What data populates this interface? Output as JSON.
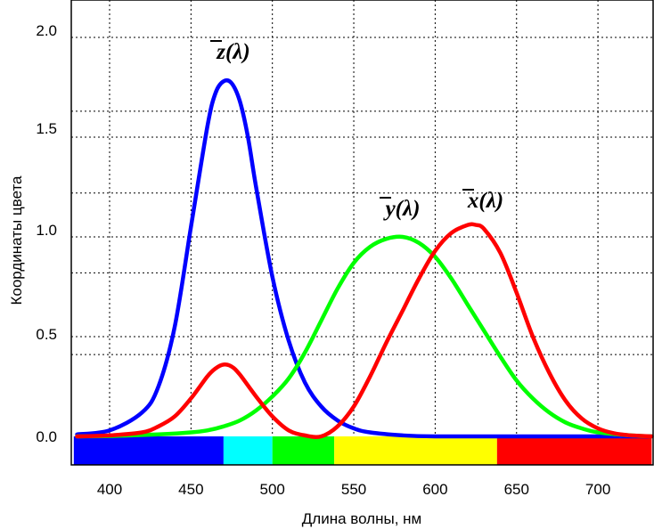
{
  "chart_data": {
    "type": "line",
    "xlabel": "Длина волны, нм",
    "ylabel": "Координаты цвета",
    "xlim": [
      378,
      733
    ],
    "ylim": [
      -0.12,
      2.2
    ],
    "x_ticks": [
      "400",
      "450",
      "500",
      "550",
      "600",
      "650",
      "700"
    ],
    "y_ticks": [
      "0.0",
      "0.5",
      "1.0",
      "1.5",
      "2.0"
    ],
    "grid": true,
    "series": [
      {
        "name": "z̄(λ)",
        "label_text": "z(λ)",
        "color": "#0000ff",
        "x": [
          380,
          400,
          420,
          430,
          440,
          450,
          460,
          465,
          470,
          475,
          480,
          485,
          490,
          500,
          510,
          520,
          530,
          540,
          550,
          560,
          580,
          600,
          650,
          700,
          733
        ],
        "y": [
          0.01,
          0.03,
          0.12,
          0.25,
          0.55,
          1.05,
          1.55,
          1.72,
          1.78,
          1.77,
          1.68,
          1.5,
          1.25,
          0.8,
          0.48,
          0.27,
          0.15,
          0.08,
          0.04,
          0.02,
          0.005,
          0.0,
          0.0,
          0.0,
          0.0
        ]
      },
      {
        "name": "ȳ(λ)",
        "label_text": "y(λ)",
        "color": "#00ff00",
        "x": [
          380,
          400,
          430,
          450,
          460,
          470,
          480,
          490,
          500,
          510,
          520,
          530,
          540,
          550,
          560,
          570,
          580,
          590,
          600,
          610,
          620,
          630,
          640,
          650,
          660,
          670,
          680,
          690,
          700,
          720,
          733
        ],
        "y": [
          0.0,
          0.002,
          0.01,
          0.02,
          0.03,
          0.05,
          0.08,
          0.13,
          0.2,
          0.29,
          0.42,
          0.58,
          0.74,
          0.87,
          0.95,
          0.99,
          1.0,
          0.97,
          0.9,
          0.79,
          0.66,
          0.53,
          0.4,
          0.28,
          0.19,
          0.12,
          0.07,
          0.04,
          0.02,
          0.005,
          0.0
        ]
      },
      {
        "name": "x̄(λ)",
        "label_text": "x(λ)",
        "color": "#ff0000",
        "x": [
          380,
          400,
          420,
          430,
          440,
          450,
          460,
          465,
          470,
          475,
          480,
          490,
          500,
          510,
          520,
          530,
          540,
          550,
          560,
          570,
          580,
          590,
          600,
          610,
          620,
          625,
          630,
          640,
          650,
          660,
          670,
          680,
          690,
          700,
          710,
          720,
          733
        ],
        "y": [
          0.0,
          0.005,
          0.02,
          0.05,
          0.1,
          0.19,
          0.3,
          0.34,
          0.36,
          0.35,
          0.31,
          0.2,
          0.1,
          0.03,
          0.005,
          0.0,
          0.05,
          0.15,
          0.3,
          0.47,
          0.63,
          0.79,
          0.93,
          1.02,
          1.06,
          1.06,
          1.04,
          0.92,
          0.72,
          0.5,
          0.32,
          0.18,
          0.09,
          0.04,
          0.015,
          0.005,
          0.0
        ]
      }
    ],
    "spectrum_bar": [
      {
        "from": 378,
        "to": 470,
        "color": "#0000ff"
      },
      {
        "from": 470,
        "to": 500,
        "color": "#00ffff"
      },
      {
        "from": 500,
        "to": 538,
        "color": "#00ff00"
      },
      {
        "from": 538,
        "to": 638,
        "color": "#ffff00"
      },
      {
        "from": 638,
        "to": 733,
        "color": "#ff0000"
      }
    ]
  }
}
